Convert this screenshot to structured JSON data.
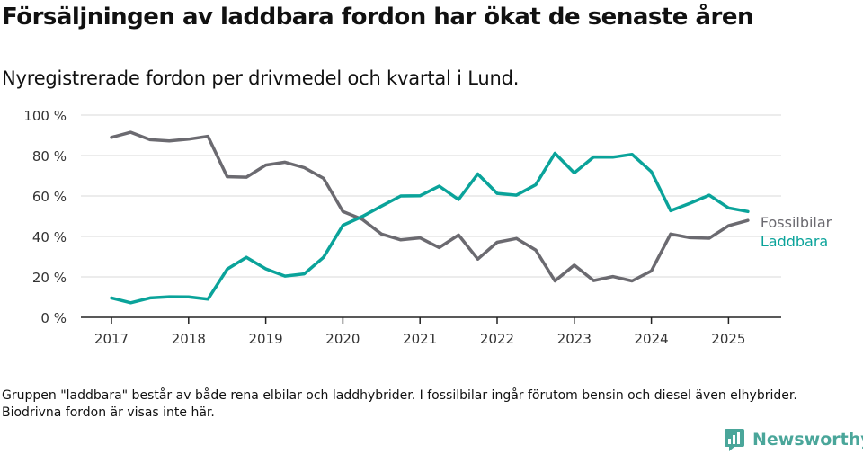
{
  "title": "Försäljningen av laddbara fordon har ökat de senaste åren",
  "subtitle": "Nyregistrerade fordon per drivmedel och kvartal i Lund.",
  "footnote": "Gruppen \"laddbara\" består av både rena elbilar och laddhybrider. I fossilbilar ingår förutom bensin och diesel även elhybrider. Biodrivna fordon är visas inte här.",
  "logo": {
    "text": "Newsworthy",
    "color": "#4aa69a"
  },
  "chart_data": {
    "type": "line",
    "title": "Försäljningen av laddbara fordon har ökat de senaste åren",
    "subtitle": "Nyregistrerade fordon per drivmedel och kvartal i Lund.",
    "xlabel": "",
    "ylabel": "",
    "ylim": [
      0,
      100
    ],
    "y_ticks": [
      0,
      20,
      40,
      60,
      80,
      100
    ],
    "y_tick_labels": [
      "0 %",
      "20 %",
      "40 %",
      "60 %",
      "80 %",
      "100 %"
    ],
    "x_ticks": [
      "2017",
      "2018",
      "2019",
      "2020",
      "2021",
      "2022",
      "2023",
      "2024",
      "2025"
    ],
    "x": [
      "2017 Q1",
      "2017 Q2",
      "2017 Q3",
      "2017 Q4",
      "2018 Q1",
      "2018 Q2",
      "2018 Q3",
      "2018 Q4",
      "2019 Q1",
      "2019 Q2",
      "2019 Q3",
      "2019 Q4",
      "2020 Q1",
      "2020 Q2",
      "2020 Q3",
      "2020 Q4",
      "2021 Q1",
      "2021 Q2",
      "2021 Q3",
      "2021 Q4",
      "2022 Q1",
      "2022 Q2",
      "2022 Q3",
      "2022 Q4",
      "2023 Q1",
      "2023 Q2",
      "2023 Q3",
      "2023 Q4",
      "2024 Q1",
      "2024 Q2",
      "2024 Q3",
      "2024 Q4",
      "2025 Q1",
      "2025 Q2"
    ],
    "grid": true,
    "legend": "end-of-line labels",
    "series": [
      {
        "name": "Fossilbilar",
        "color": "#6b6a70",
        "values": [
          89,
          91.5,
          87.8,
          87.2,
          88.1,
          89.5,
          69.5,
          69.3,
          75.3,
          76.7,
          74,
          68.7,
          52.3,
          48.5,
          41.2,
          38.3,
          39.3,
          34.5,
          40.7,
          28.8,
          37.1,
          39,
          33.3,
          18,
          25.8,
          18.2,
          20.2,
          18,
          23,
          41.2,
          39.4,
          39.1,
          45.3,
          47.9
        ]
      },
      {
        "name": "Laddbara",
        "color": "#0aa39a",
        "values": [
          9.6,
          7.2,
          9.6,
          10.2,
          10.1,
          9,
          23.8,
          29.7,
          24,
          20.4,
          21.5,
          29.7,
          45.5,
          49.8,
          55,
          60,
          60.1,
          64.9,
          58.2,
          70.9,
          61.3,
          60.4,
          65.5,
          81.1,
          71.4,
          79.3,
          79.2,
          80.6,
          72,
          52.7,
          56.4,
          60.4,
          54.1,
          52.3
        ]
      }
    ]
  }
}
